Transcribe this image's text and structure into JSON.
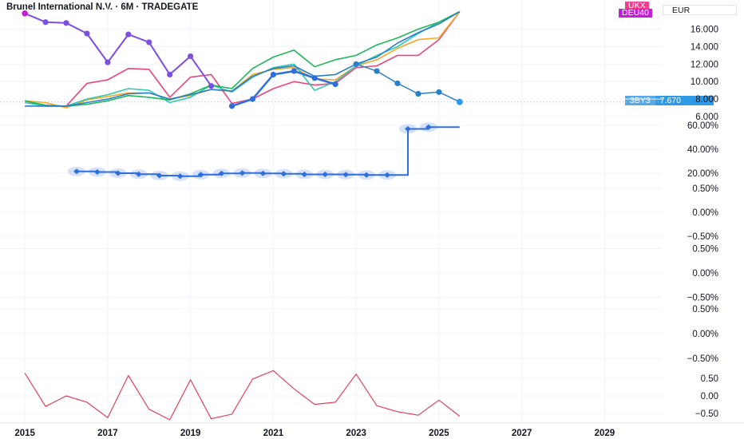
{
  "title": "Brunel International N.V. · 6M · TRADEGATE",
  "currency": "EUR",
  "badges": {
    "ukx": {
      "label": "UKX",
      "color": "#f23c8c"
    },
    "deu40": {
      "label": "DEU40",
      "color": "#c21fd6"
    },
    "bby3": {
      "label": "3BY3",
      "value": "7.670",
      "color": "#2f9be6"
    }
  },
  "colors": {
    "main": "#2e6fd9",
    "purple": "#7b4fe0",
    "magenta": "#c21fd6",
    "green": "#1fb75a",
    "teal": "#2ec9b0",
    "orange": "#f5a623",
    "pink": "#e8467c",
    "blue": "#2a7fc9",
    "osc": "#e0415a",
    "grid": "#f0f3fa"
  },
  "chart_data": [
    {
      "type": "line",
      "x": [
        2015,
        2015.5,
        2016,
        2016.5,
        2017,
        2017.5,
        2018,
        2018.5,
        2019,
        2019.5,
        2020,
        2020.5,
        2021,
        2021.5,
        2022,
        2022.5,
        2023,
        2023.5,
        2024,
        2024.5,
        2025,
        2025.5
      ],
      "yticks": [
        "6.000",
        "8.000",
        "10.000",
        "12.000",
        "14.000",
        "16.000"
      ],
      "ylim": [
        5.5,
        18.5
      ],
      "series": [
        {
          "values": [
            null,
            null,
            null,
            null,
            null,
            null,
            null,
            null,
            null,
            null,
            7.2,
            8.0,
            10.8,
            11.2,
            10.4,
            9.7,
            null,
            null,
            null,
            null,
            null,
            null
          ]
        },
        {
          "values": [
            null,
            null,
            null,
            null,
            null,
            null,
            null,
            null,
            null,
            null,
            null,
            null,
            null,
            null,
            null,
            null,
            12.0,
            11.2,
            9.8,
            8.6,
            8.8,
            7.67
          ]
        },
        {
          "values": [
            17.8,
            16.8,
            16.7,
            15.5,
            12.2,
            15.4,
            14.5,
            10.8,
            12.9,
            9.5,
            null,
            null,
            null,
            null,
            null,
            null,
            null,
            null,
            null,
            null,
            null,
            null
          ]
        },
        {
          "values": [
            7.8,
            7.3,
            7.2,
            7.4,
            7.8,
            8.4,
            8.2,
            7.9,
            8.6,
            9.6,
            9.2,
            11.5,
            12.8,
            13.6,
            11.7,
            12.5,
            13.0,
            14.2,
            15.0,
            16.0,
            16.8,
            18.0
          ]
        },
        {
          "values": [
            7.6,
            7.2,
            7.2,
            8.0,
            8.5,
            9.2,
            9.0,
            7.6,
            8.2,
            9.6,
            8.8,
            10.5,
            11.6,
            12.0,
            9.0,
            10.0,
            11.8,
            13.0,
            14.0,
            15.5,
            16.8,
            18.0
          ]
        },
        {
          "values": [
            7.8,
            7.6,
            7.0,
            7.9,
            8.3,
            8.7,
            8.7,
            8.0,
            8.4,
            9.1,
            8.9,
            10.8,
            11.4,
            11.6,
            10.3,
            10.2,
            11.8,
            12.5,
            13.8,
            14.8,
            15.0,
            18.0
          ]
        },
        {
          "values": [
            7.8,
            7.2,
            7.2,
            9.8,
            10.2,
            11.5,
            11.4,
            8.2,
            10.5,
            10.8,
            7.5,
            8.0,
            9.2,
            10.0,
            9.6,
            9.8,
            11.6,
            11.8,
            13.0,
            13.0,
            14.8,
            18.0
          ]
        },
        {
          "values": [
            7.2,
            7.2,
            7.2,
            7.6,
            8.0,
            8.6,
            8.7,
            8.0,
            8.5,
            9.1,
            8.9,
            10.6,
            11.5,
            11.8,
            10.6,
            10.8,
            12.0,
            12.8,
            14.4,
            15.6,
            16.6,
            18.0
          ]
        }
      ]
    },
    {
      "type": "line",
      "x": [
        2016.25,
        2016.75,
        2017.25,
        2017.75,
        2018.25,
        2018.75,
        2019.25,
        2019.75,
        2020.25,
        2020.75,
        2021.25,
        2021.75,
        2022.25,
        2022.75,
        2023.25,
        2023.75,
        2024.25,
        2024.75
      ],
      "yticks": [
        "20.00%",
        "40.00%",
        "60.00%"
      ],
      "ylim": [
        12.5,
        62.5
      ],
      "values": [
        21.5,
        21.0,
        20.0,
        19.2,
        18.0,
        17.5,
        18.8,
        19.8,
        20.2,
        19.8,
        19.5,
        19.0,
        19.0,
        18.8,
        18.5,
        18.5,
        57.0,
        58.5
      ],
      "last_value": 58.5
    },
    {
      "type": "line",
      "yticks": [
        "0.50%",
        "0.00%",
        "−0.50%"
      ],
      "ylim": [
        -0.56,
        0.57
      ],
      "values": []
    },
    {
      "type": "line",
      "yticks": [
        "0.50%",
        "0.00%",
        "−0.50%"
      ],
      "ylim": [
        -0.56,
        0.57
      ],
      "values": []
    },
    {
      "type": "line",
      "yticks": [
        "0.50%",
        "0.00%",
        "−0.50%"
      ],
      "ylim": [
        -0.56,
        0.57
      ],
      "values": []
    },
    {
      "type": "line",
      "x": [
        2015,
        2015.5,
        2016,
        2016.5,
        2017,
        2017.5,
        2018,
        2018.5,
        2019,
        2019.5,
        2020,
        2020.5,
        2021,
        2021.5,
        2022,
        2022.5,
        2023,
        2023.5,
        2024,
        2024.5,
        2025,
        2025.5
      ],
      "yticks": [
        "0.50",
        "0.00",
        "−0.50"
      ],
      "ylim": [
        -0.7,
        0.75
      ],
      "values": [
        0.65,
        -0.3,
        0.0,
        -0.18,
        -0.62,
        0.58,
        -0.38,
        -0.68,
        0.46,
        -0.65,
        -0.52,
        0.48,
        0.72,
        0.2,
        -0.24,
        -0.18,
        0.62,
        -0.28,
        -0.45,
        -0.55,
        -0.12,
        -0.58
      ]
    }
  ],
  "x_axis": {
    "ticks": [
      "2015",
      "2017",
      "2019",
      "2021",
      "2023",
      "2025",
      "2027",
      "2029"
    ],
    "range": [
      2014.4,
      2030.4
    ]
  }
}
